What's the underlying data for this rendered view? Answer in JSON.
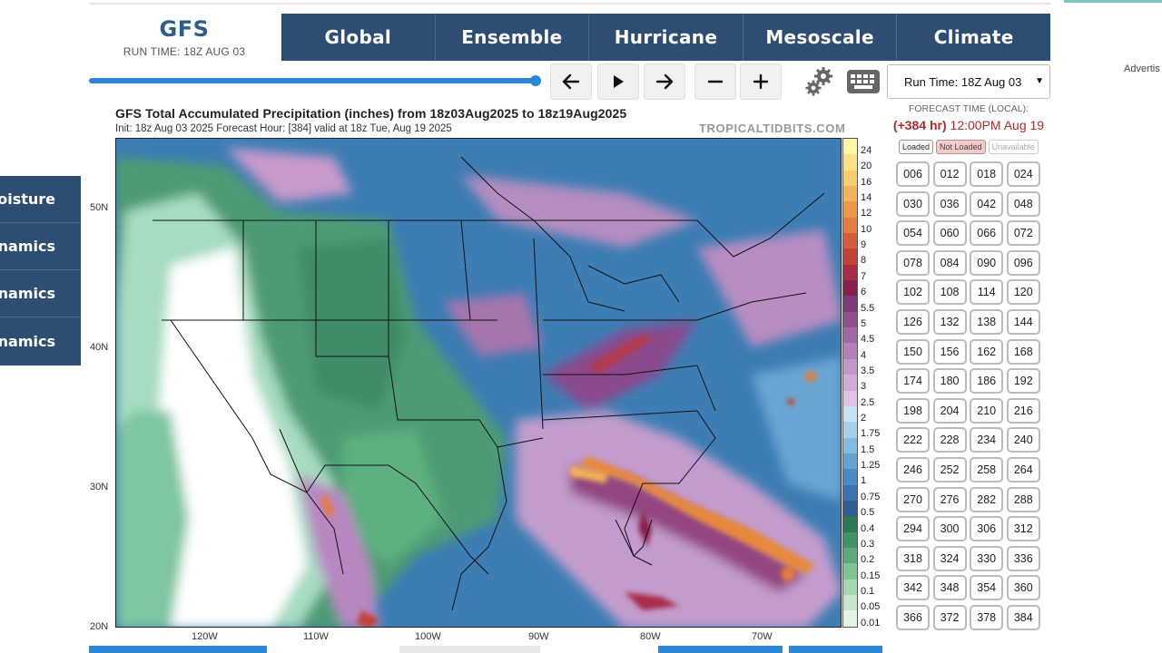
{
  "brand": {
    "title": "GFS",
    "run_time": "RUN TIME: 18Z AUG 03"
  },
  "nav": {
    "tabs": [
      "Global",
      "Ensemble",
      "Hurricane",
      "Mesoscale",
      "Climate"
    ]
  },
  "controls": {
    "prev_icon": "arrow-left-icon",
    "play_icon": "play-icon",
    "next_icon": "arrow-right-icon",
    "zoom_out_icon": "minus-icon",
    "zoom_in_icon": "plus-icon",
    "settings_icon": "gear-icon",
    "keyboard_icon": "keyboard-icon",
    "run_select_value": "Run Time: 18Z Aug 03",
    "slider_progress": 1.0
  },
  "advert_text": "Advertis",
  "sidebar": {
    "items": [
      "Moisture",
      "Dynamics",
      "Dynamics",
      "Dynamics"
    ]
  },
  "map": {
    "title": "GFS Total Accumulated Precipitation (inches) from 18z03Aug2025 to 18z19Aug2025",
    "subtitle": "Init: 18z Aug 03 2025   Forecast Hour: [384]   valid at 18z Tue, Aug 19 2025",
    "credit": "TROPICALTIDBITS.COM",
    "lat_labels": [
      "50N",
      "40N",
      "30N",
      "20N"
    ],
    "lon_labels": [
      "120W",
      "110W",
      "100W",
      "90W",
      "80W",
      "70W"
    ],
    "colorbar_labels": [
      "24",
      "20",
      "16",
      "14",
      "12",
      "10",
      "9",
      "8",
      "7",
      "6",
      "5.5",
      "5",
      "4.5",
      "4",
      "3.5",
      "3",
      "2.5",
      "2",
      "1.75",
      "1.5",
      "1.25",
      "1",
      "0.75",
      "0.5",
      "0.4",
      "0.3",
      "0.2",
      "0.15",
      "0.1",
      "0.05",
      "0.01"
    ],
    "colorbar_colors": [
      "#fdf7a6",
      "#fbe383",
      "#f8cd6a",
      "#f3b357",
      "#ee9847",
      "#e57c3d",
      "#d65d3a",
      "#c24238",
      "#a82c46",
      "#8b1f4c",
      "#7e3b7a",
      "#8e5291",
      "#a068a6",
      "#b27fbb",
      "#c396cc",
      "#d2acd8",
      "#dfc3e3",
      "#c6e3f2",
      "#a4d0ea",
      "#82bbe0",
      "#62a3d4",
      "#4a8ac6",
      "#3b73b2",
      "#2f5f93",
      "#2a7a55",
      "#3d9465",
      "#5bab7a",
      "#7ec392",
      "#a3d7ae",
      "#c5e8cc",
      "#e2f4e4"
    ]
  },
  "forecast": {
    "header": "FORECAST TIME (LOCAL):",
    "hour": "(+384 hr)",
    "time": "12:00PM Aug 19",
    "legend": [
      "Loaded",
      "Not Loaded",
      "Unavailable"
    ],
    "hours": [
      "006",
      "012",
      "018",
      "024",
      "030",
      "036",
      "042",
      "048",
      "054",
      "060",
      "066",
      "072",
      "078",
      "084",
      "090",
      "096",
      "102",
      "108",
      "114",
      "120",
      "126",
      "132",
      "138",
      "144",
      "150",
      "156",
      "162",
      "168",
      "174",
      "180",
      "186",
      "192",
      "198",
      "204",
      "210",
      "216",
      "222",
      "228",
      "234",
      "240",
      "246",
      "252",
      "258",
      "264",
      "270",
      "276",
      "282",
      "288",
      "294",
      "300",
      "306",
      "312",
      "318",
      "324",
      "330",
      "336",
      "342",
      "348",
      "354",
      "360",
      "366",
      "372",
      "378",
      "384"
    ]
  },
  "colors": {
    "nav_bg": "#2d4e72",
    "accent": "#2c86d8",
    "hour_red": "#b22a2a"
  }
}
